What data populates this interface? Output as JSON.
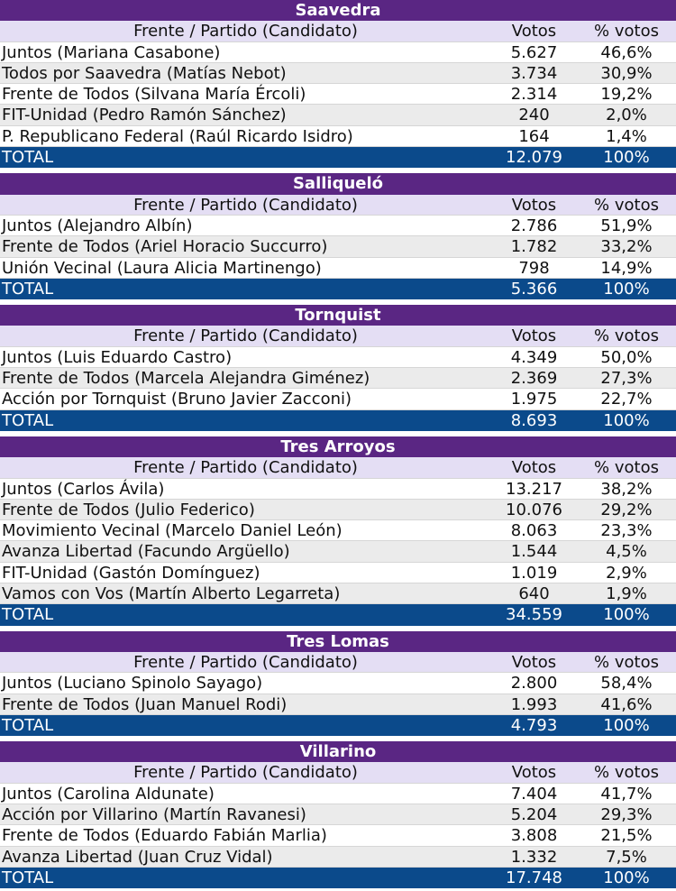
{
  "sections": [
    {
      "title": "Saavedra",
      "header": [
        "Frente / Partido (Candidato)",
        "Votos",
        "% votos"
      ],
      "rows": [
        [
          "Juntos (Mariana Casabone)",
          "5.627",
          "46,6%"
        ],
        [
          "Todos por Saavedra (Matías Nebot)",
          "3.734",
          "30,9%"
        ],
        [
          "Frente de Todos (Silvana María Ércoli)",
          "2.314",
          "19,2%"
        ],
        [
          "FIT-Unidad (Pedro Ramón Sánchez)",
          "240",
          "2,0%"
        ],
        [
          "P. Republicano Federal (Raúl Ricardo Isidro)",
          "164",
          "1,4%"
        ]
      ],
      "total": [
        "TOTAL",
        "12.079",
        "100%"
      ]
    },
    {
      "title": "Salliqueló",
      "header": [
        "Frente / Partido (Candidato)",
        "Votos",
        "% votos"
      ],
      "rows": [
        [
          "Juntos (Alejandro Albín)",
          "2.786",
          "51,9%"
        ],
        [
          "Frente de Todos (Ariel Horacio Succurro)",
          "1.782",
          "33,2%"
        ],
        [
          "Unión Vecinal (Laura Alicia Martinengo)",
          "798",
          "14,9%"
        ]
      ],
      "total": [
        "TOTAL",
        "5.366",
        "100%"
      ]
    },
    {
      "title": "Tornquist",
      "header": [
        "Frente / Partido (Candidato)",
        "Votos",
        "% votos"
      ],
      "rows": [
        [
          "Juntos (Luis Eduardo Castro)",
          "4.349",
          "50,0%"
        ],
        [
          "Frente de Todos (Marcela Alejandra Giménez)",
          "2.369",
          "27,3%"
        ],
        [
          "Acción por Tornquist (Bruno Javier Zacconi)",
          "1.975",
          "22,7%"
        ]
      ],
      "total": [
        "TOTAL",
        "8.693",
        "100%"
      ]
    },
    {
      "title": "Tres Arroyos",
      "header": [
        "Frente / Partido (Candidato)",
        "Votos",
        "% votos"
      ],
      "rows": [
        [
          "Juntos (Carlos Ávila)",
          "13.217",
          "38,2%"
        ],
        [
          "Frente de Todos (Julio Federico)",
          "10.076",
          "29,2%"
        ],
        [
          "Movimiento Vecinal (Marcelo Daniel León)",
          "8.063",
          "23,3%"
        ],
        [
          "Avanza Libertad (Facundo Argüello)",
          "1.544",
          "4,5%"
        ],
        [
          "FIT-Unidad (Gastón Domínguez)",
          "1.019",
          "2,9%"
        ],
        [
          "Vamos con Vos (Martín Alberto Legarreta)",
          "640",
          "1,9%"
        ]
      ],
      "total": [
        "TOTAL",
        "34.559",
        "100%"
      ]
    },
    {
      "title": "Tres Lomas",
      "header": [
        "Frente / Partido (Candidato)",
        "Votos",
        "% votos"
      ],
      "rows": [
        [
          "Juntos (Luciano Spinolo Sayago)",
          "2.800",
          "58,4%"
        ],
        [
          "Frente de Todos (Juan Manuel Rodi)",
          "1.993",
          "41,6%"
        ]
      ],
      "total": [
        "TOTAL",
        "4.793",
        "100%"
      ]
    },
    {
      "title": "Villarino",
      "header": [
        "Frente / Partido (Candidato)",
        "Votos",
        "% votos"
      ],
      "rows": [
        [
          "Juntos (Carolina Aldunate)",
          "7.404",
          "41,7%"
        ],
        [
          "Acción por Villarino (Martín Ravanesi)",
          "5.204",
          "29,3%"
        ],
        [
          "Frente de Todos (Eduardo Fabián Marlia)",
          "3.808",
          "21,5%"
        ],
        [
          "Avanza Libertad (Juan Cruz Vidal)",
          "1.332",
          "7,5%"
        ]
      ],
      "total": [
        "TOTAL",
        "17.748",
        "100%"
      ]
    }
  ]
}
